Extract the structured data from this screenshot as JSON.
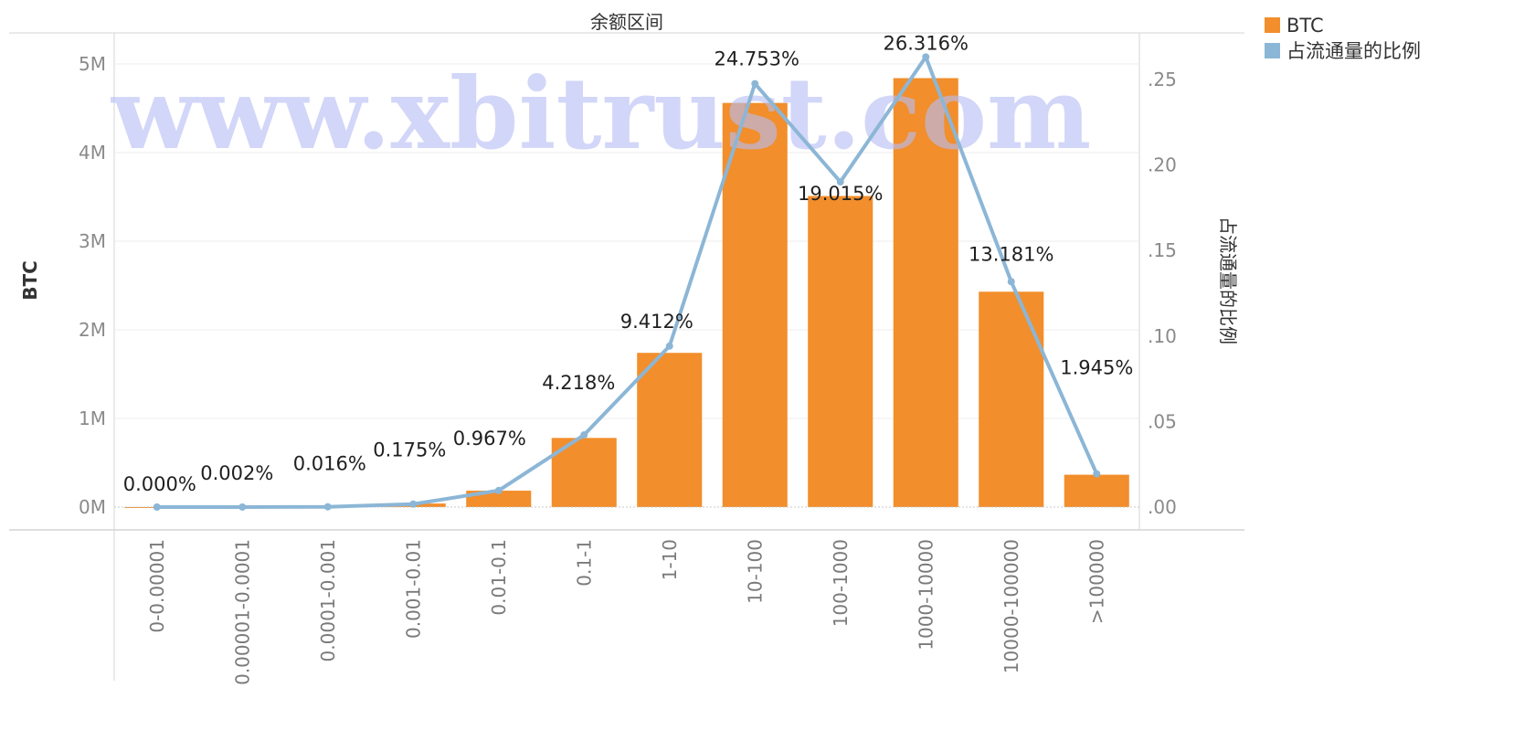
{
  "chart_data": {
    "type": "bar",
    "title": "余额区间",
    "categories": [
      "0-0.00001",
      "0.00001-0.0001",
      "0.0001-0.001",
      "0.001-0.01",
      "0.01-0.1",
      "0.1-1",
      "1-10",
      "10-100",
      "100-1000",
      "1000-10000",
      "10000-100000",
      ">100000"
    ],
    "series": [
      {
        "name": "BTC",
        "type": "bar",
        "axis": "left",
        "color": "#f28e2b",
        "values": [
          15,
          2000,
          9000,
          40000,
          185000,
          780000,
          1740000,
          4560000,
          3510000,
          4840000,
          2430000,
          365000
        ]
      },
      {
        "name": "占流通量的比例",
        "type": "line",
        "axis": "right",
        "color": "#8cb6d6",
        "values": [
          0.0,
          2e-05,
          0.00016,
          0.00175,
          0.00967,
          0.04218,
          0.09412,
          0.24753,
          0.19015,
          0.26316,
          0.13181,
          0.01945
        ],
        "labels": [
          "0.000%",
          "0.002%",
          "0.016%",
          "0.175%",
          "0.967%",
          "4.218%",
          "9.412%",
          "24.753%",
          "19.015%",
          "26.316%",
          "13.181%",
          "1.945%"
        ]
      }
    ],
    "ylabel": "BTC",
    "y2label": "占流通量的比例",
    "ylim": [
      0,
      5000000
    ],
    "y2lim": [
      0,
      0.25
    ],
    "yticks": [
      "0M",
      "1M",
      "2M",
      "3M",
      "4M",
      "5M"
    ],
    "y2ticks": [
      ".00",
      ".05",
      ".10",
      ".15",
      ".20",
      ".25"
    ],
    "grid": true,
    "legend_position": "top-right"
  },
  "watermark": "www.xbitrust.com"
}
